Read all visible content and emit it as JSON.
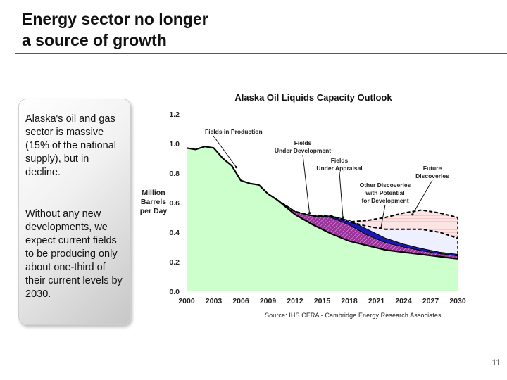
{
  "slide": {
    "title_line1": "Energy sector no longer",
    "title_line2": "a source of growth",
    "callout_p1": "Alaska's oil and gas sector is massive (15% of the national supply), but in decline.",
    "callout_p2": "Without any new developments, we expect current fields to be producing only about one-third of their current levels by 2030.",
    "source": "Source: IHS CERA - Cambridge Energy Research Associates",
    "page_number": "11"
  },
  "chart_data": {
    "type": "area",
    "title": "Alaska Oil Liquids Capacity Outlook",
    "ylabel_lines": [
      "Million",
      "Barrels",
      "per Day"
    ],
    "ylim": [
      0,
      1.2
    ],
    "yticks": [
      0.0,
      0.2,
      0.4,
      0.6,
      0.8,
      1.0,
      1.2
    ],
    "ytick_labels": [
      "0.0",
      "0.2",
      "0.4",
      "0.6",
      "0.8",
      "1.0",
      "1.2"
    ],
    "xlim": [
      2000,
      2030
    ],
    "xticks": [
      2000,
      2003,
      2006,
      2009,
      2012,
      2015,
      2018,
      2021,
      2024,
      2027,
      2030
    ],
    "xtick_labels": [
      "2000",
      "2003",
      "2006",
      "2009",
      "2012",
      "2015",
      "2018",
      "2021",
      "2024",
      "2027",
      "2030"
    ],
    "colors": {
      "production": "#ccffcc",
      "development": "#993399",
      "appraisal": "#1a1ab3",
      "other": "#eef0ff",
      "future": "#fde4e4",
      "line": "#000000"
    },
    "series": [
      {
        "name": "Fields in Production",
        "x": [
          2000,
          2001,
          2002,
          2003,
          2004,
          2005,
          2006,
          2007,
          2008,
          2009,
          2010,
          2012,
          2014,
          2016,
          2018,
          2020,
          2022,
          2024,
          2026,
          2028,
          2030
        ],
        "values": [
          0.97,
          0.96,
          0.98,
          0.97,
          0.9,
          0.85,
          0.75,
          0.73,
          0.72,
          0.66,
          0.62,
          0.52,
          0.45,
          0.39,
          0.34,
          0.31,
          0.28,
          0.265,
          0.25,
          0.235,
          0.22
        ]
      },
      {
        "name": "Fields Under Development",
        "x": [
          2009,
          2010,
          2012,
          2014,
          2016,
          2018,
          2020,
          2022,
          2024,
          2026,
          2028,
          2030
        ],
        "values": [
          0.66,
          0.62,
          0.54,
          0.51,
          0.5,
          0.45,
          0.38,
          0.33,
          0.3,
          0.275,
          0.255,
          0.24
        ]
      },
      {
        "name": "Fields Under Appraisal",
        "x": [
          2009,
          2010,
          2012,
          2014,
          2016,
          2018,
          2020,
          2022,
          2024,
          2026,
          2028,
          2030
        ],
        "values": [
          0.66,
          0.62,
          0.54,
          0.51,
          0.51,
          0.48,
          0.42,
          0.36,
          0.32,
          0.29,
          0.265,
          0.25
        ]
      },
      {
        "name": "Other Discoveries with Potential for Development",
        "x": [
          2009,
          2010,
          2012,
          2014,
          2016,
          2018,
          2020,
          2022,
          2024,
          2026,
          2028,
          2030
        ],
        "values": [
          0.66,
          0.62,
          0.54,
          0.51,
          0.51,
          0.47,
          0.44,
          0.42,
          0.42,
          0.42,
          0.4,
          0.36
        ]
      },
      {
        "name": "Future Discoveries",
        "x": [
          2009,
          2010,
          2012,
          2014,
          2016,
          2018,
          2020,
          2022,
          2024,
          2026,
          2028,
          2030
        ],
        "values": [
          0.66,
          0.62,
          0.54,
          0.51,
          0.51,
          0.47,
          0.48,
          0.5,
          0.53,
          0.55,
          0.53,
          0.5
        ]
      }
    ],
    "annotations": [
      {
        "lines": [
          "Fields in Production"
        ],
        "target": [
          2005.5,
          0.84
        ]
      },
      {
        "lines": [
          "Fields",
          "Under Development"
        ],
        "target": [
          2013.6,
          0.53
        ]
      },
      {
        "lines": [
          "Fields",
          "Under Appraisal"
        ],
        "target": [
          2017.3,
          0.5
        ]
      },
      {
        "lines": [
          "Other Discoveries",
          "with Potential",
          "for Development"
        ],
        "target": [
          2021.5,
          0.43
        ]
      },
      {
        "lines": [
          "Future",
          "Discoveries"
        ],
        "target": [
          2025,
          0.52
        ]
      }
    ]
  }
}
